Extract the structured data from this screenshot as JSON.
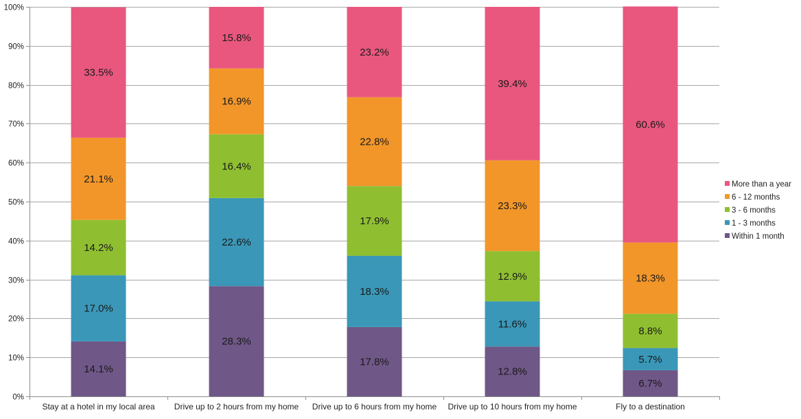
{
  "chart_data": {
    "type": "bar",
    "stacked": true,
    "percent_stacked": true,
    "categories": [
      "Stay at a hotel in my local area",
      "Drive up to 2 hours from my home",
      "Drive up to 6 hours from my home",
      "Drive up to 10 hours from my home",
      "Fly to a destination"
    ],
    "series": [
      {
        "name": "Within 1 month",
        "color": "#6f5787",
        "values": [
          14.1,
          28.3,
          17.8,
          12.8,
          6.7
        ],
        "labels": [
          "14.1%",
          "28.3%",
          "17.8%",
          "12.8%",
          "6.7%"
        ]
      },
      {
        "name": "1 - 3 months",
        "color": "#3a97b8",
        "values": [
          17.0,
          22.6,
          18.3,
          11.6,
          5.7
        ],
        "labels": [
          "17.0%",
          "22.6%",
          "18.3%",
          "11.6%",
          "5.7%"
        ]
      },
      {
        "name": "3 - 6 months",
        "color": "#8fbf31",
        "values": [
          14.2,
          16.4,
          17.9,
          12.9,
          8.8
        ],
        "labels": [
          "14.2%",
          "16.4%",
          "17.9%",
          "12.9%",
          "8.8%"
        ]
      },
      {
        "name": "6 - 12 months",
        "color": "#f2962a",
        "values": [
          21.1,
          16.9,
          22.8,
          23.3,
          18.3
        ],
        "labels": [
          "21.1%",
          "16.9%",
          "22.8%",
          "23.3%",
          "18.3%"
        ]
      },
      {
        "name": "More than a year",
        "color": "#e9577e",
        "values": [
          33.5,
          15.8,
          23.2,
          39.4,
          60.6
        ],
        "labels": [
          "33.5%",
          "15.8%",
          "23.2%",
          "39.4%",
          "60.6%"
        ]
      }
    ],
    "ylim": [
      0,
      100
    ],
    "yticks": [
      "0%",
      "10%",
      "20%",
      "30%",
      "40%",
      "50%",
      "60%",
      "70%",
      "80%",
      "90%",
      "100%"
    ],
    "title": "",
    "xlabel": "",
    "ylabel": "",
    "grid": true,
    "legend_position": "right",
    "legend_order": [
      "More than a year",
      "6 - 12 months",
      "3 - 6 months",
      "1 - 3 months",
      "Within 1 month"
    ]
  }
}
